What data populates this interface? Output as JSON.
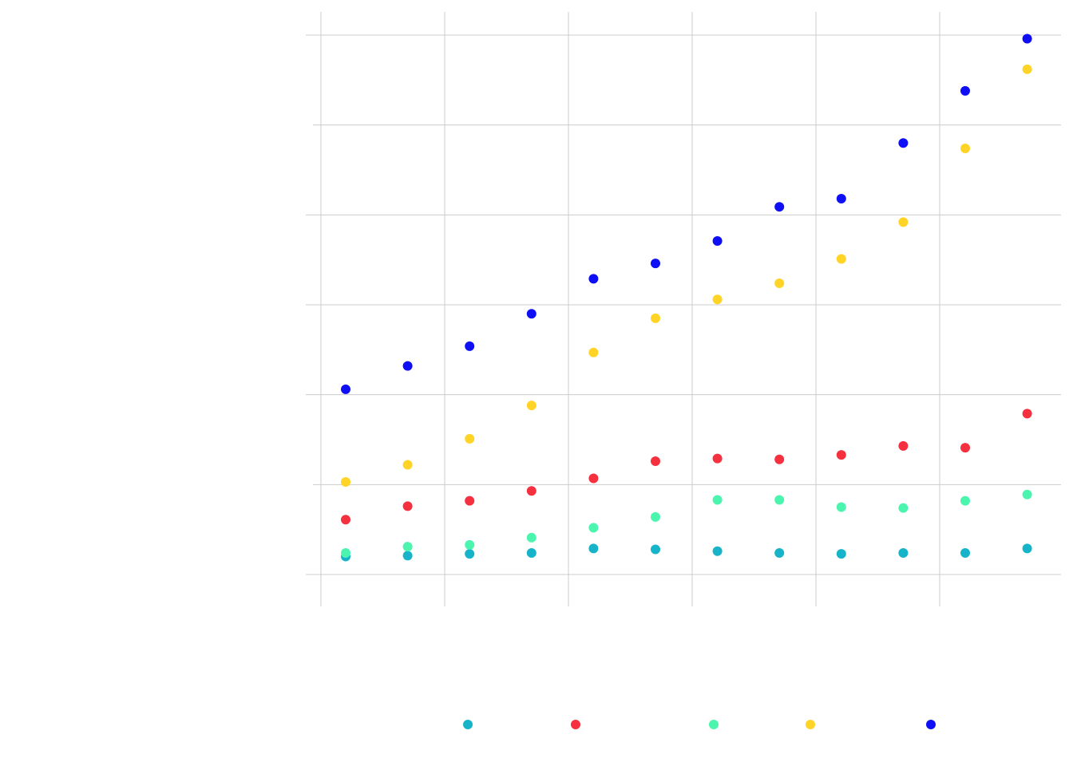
{
  "chart_data": {
    "type": "scatter",
    "title": "",
    "xlabel": "",
    "ylabel": "",
    "x_ticks": [
      "",
      "",
      "",
      "",
      "",
      ""
    ],
    "y_ticks": [
      "",
      "",
      "",
      "",
      "",
      "",
      ""
    ],
    "y_tick_values": [
      0,
      10,
      20,
      30,
      40,
      50,
      60
    ],
    "xlim": [
      0,
      12
    ],
    "ylim": [
      0,
      60
    ],
    "grid": true,
    "legend_position": "bottom",
    "x": [
      1,
      2,
      3,
      4,
      5,
      6,
      7,
      8,
      9,
      10,
      11,
      12
    ],
    "series": [
      {
        "color": "#17b4c9",
        "values": [
          2.0,
          2.1,
          2.3,
          2.4,
          2.9,
          2.8,
          2.6,
          2.4,
          2.3,
          2.4,
          2.4,
          2.9
        ]
      },
      {
        "color": "#f5303f",
        "values": [
          6.1,
          7.6,
          8.2,
          9.3,
          10.7,
          12.6,
          12.9,
          12.8,
          13.3,
          14.3,
          14.1,
          17.9
        ]
      },
      {
        "color": "#4cf5ae",
        "values": [
          2.4,
          3.1,
          3.3,
          4.1,
          5.2,
          6.4,
          8.3,
          8.3,
          7.5,
          7.4,
          8.2,
          8.9
        ]
      },
      {
        "color": "#ffd426",
        "values": [
          10.3,
          12.2,
          15.1,
          18.8,
          24.7,
          28.5,
          30.6,
          32.4,
          35.1,
          39.2,
          47.4,
          56.2
        ]
      },
      {
        "color": "#0f0ff5",
        "values": [
          20.6,
          23.2,
          25.4,
          29.0,
          32.9,
          34.6,
          37.1,
          40.9,
          41.8,
          48.0,
          53.8,
          59.6
        ]
      }
    ],
    "legend": [
      "",
      "",
      "",
      "",
      ""
    ]
  }
}
